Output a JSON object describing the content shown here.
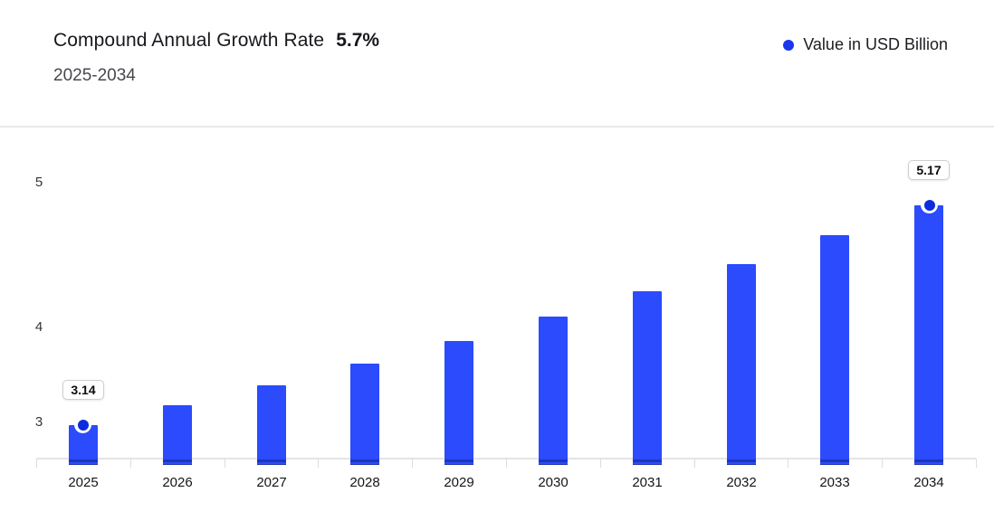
{
  "header": {
    "title": "Compound Annual Growth Rate",
    "cagr_value": "5.7%",
    "subtitle": "2025-2034",
    "legend": {
      "label": "Value in USD Billion",
      "dot_color": "#1b36ec"
    }
  },
  "chart_data": {
    "type": "bar",
    "title": "Compound Annual Growth Rate 5.7%, 2025-2034",
    "xlabel": "",
    "ylabel": "Value in USD Billion",
    "categories": [
      "2025",
      "2026",
      "2027",
      "2028",
      "2029",
      "2030",
      "2031",
      "2032",
      "2033",
      "2034"
    ],
    "series": [
      {
        "name": "Value in USD Billion",
        "values": [
          3.14,
          3.32,
          3.51,
          3.71,
          3.92,
          4.14,
          4.38,
          4.63,
          4.89,
          5.17
        ]
      }
    ],
    "value_labels": [
      {
        "index": 0,
        "text": "3.14"
      },
      {
        "index": 9,
        "text": "5.17"
      }
    ],
    "marker_indices": [
      0,
      9
    ],
    "yticks": [
      "5",
      "4",
      "3"
    ],
    "ylim": [
      2.77,
      5.4
    ],
    "grid": false,
    "legend_position": "top-right",
    "bar_color": "#2b4bfd",
    "marker_color": "#0d2cdb",
    "value_box_border": "#cfcfcf"
  }
}
